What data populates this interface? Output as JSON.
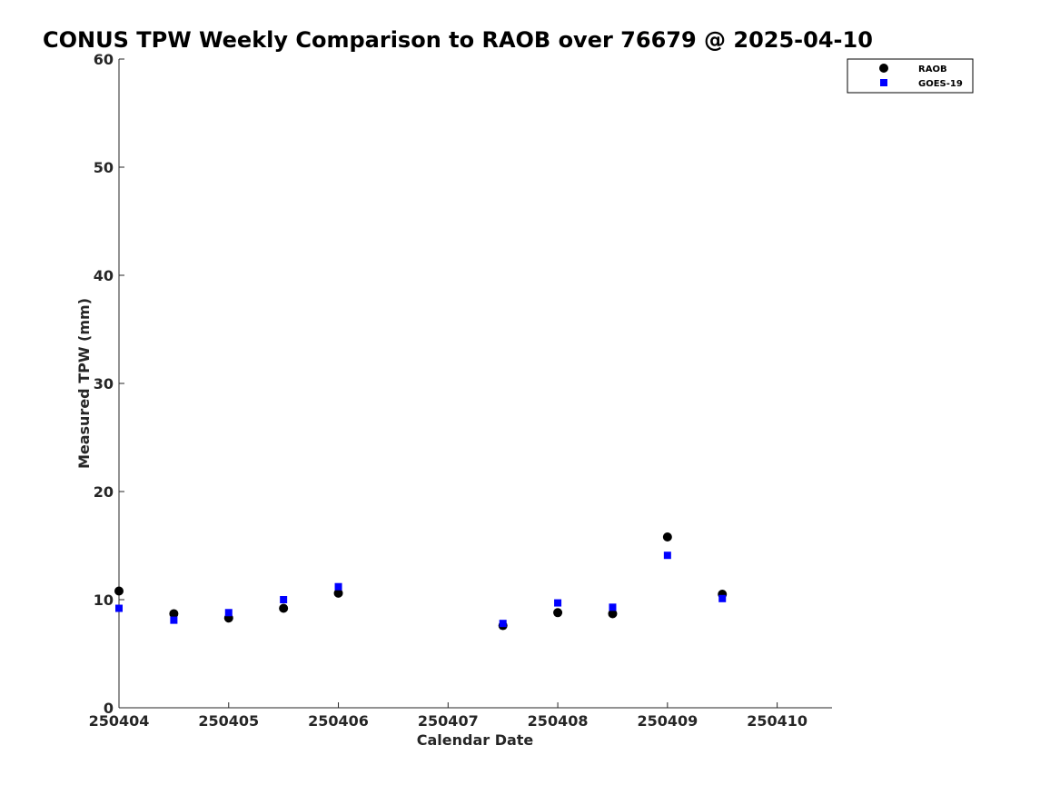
{
  "chart_data": {
    "type": "scatter",
    "title": "CONUS TPW Weekly Comparison to RAOB over 76679 @ 2025-04-10",
    "xlabel": "Calendar Date",
    "ylabel": "Measured TPW (mm)",
    "xlim": [
      250404,
      250410.5
    ],
    "ylim": [
      0,
      60
    ],
    "xticks": [
      250404,
      250405,
      250406,
      250407,
      250408,
      250409,
      250410
    ],
    "xtick_labels": [
      "250404",
      "250405",
      "250406",
      "250407",
      "250408",
      "250409",
      "250410"
    ],
    "yticks": [
      0,
      10,
      20,
      30,
      40,
      50,
      60
    ],
    "ytick_labels": [
      "0",
      "10",
      "20",
      "30",
      "40",
      "50",
      "60"
    ],
    "legend_position": "top-right",
    "series": [
      {
        "name": "RAOB",
        "marker": "circle",
        "color": "#000000",
        "x": [
          250404,
          250404.5,
          250405,
          250405.5,
          250406,
          250407.5,
          250408,
          250408.5,
          250409,
          250409.5
        ],
        "y": [
          10.8,
          8.7,
          8.3,
          9.2,
          10.6,
          7.6,
          8.8,
          8.7,
          15.8,
          10.5
        ]
      },
      {
        "name": "GOES-19",
        "marker": "square",
        "color": "#0000ff",
        "x": [
          250404,
          250404.5,
          250405,
          250405.5,
          250406,
          250407.5,
          250408,
          250408.5,
          250409,
          250409.5
        ],
        "y": [
          9.2,
          8.1,
          8.8,
          10.0,
          11.2,
          7.8,
          9.7,
          9.3,
          14.1,
          10.1
        ]
      }
    ]
  }
}
